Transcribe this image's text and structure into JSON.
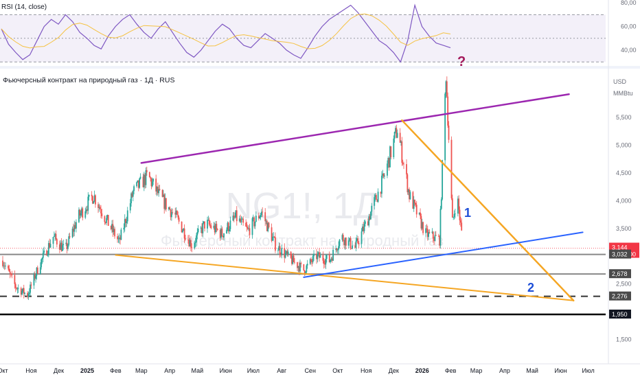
{
  "header": {
    "title": "Фьючерсный контракт на природный газ · 1Д · RUS",
    "rsi_title": "RSI (14, close)"
  },
  "watermark": {
    "symbol": "NG1!, 1Д",
    "name": "Фьючерсный контракт на природный газ"
  },
  "right_axis": {
    "currency": "USD",
    "unit": "MMBtu",
    "ticks": [
      "5,500",
      "5,000",
      "4,500",
      "4,000",
      "3,500",
      "2,500",
      "1,500"
    ],
    "rsi_ticks": [
      "80,00",
      "60,00",
      "40,00"
    ]
  },
  "price_badges": [
    {
      "value": "3,144",
      "sub": "16:38:00",
      "color": "#f23645"
    },
    {
      "value": "3,032",
      "color": "#4a4a4a"
    },
    {
      "value": "2,678",
      "color": "#4a4a4a"
    },
    {
      "value": "2,276",
      "color": "#4a4a4a"
    },
    {
      "value": "1,950",
      "color": "#131722"
    }
  ],
  "x_axis": [
    "Окт",
    "Ноя",
    "Дек",
    "2025",
    "Фев",
    "Мар",
    "Апр",
    "Май",
    "Июн",
    "Июл",
    "Авг",
    "Сен",
    "Окт",
    "Ноя",
    "Дек",
    "2026",
    "Фев",
    "Мар",
    "Апр",
    "Май",
    "Июн",
    "Июл"
  ],
  "annotations": {
    "label_1": "1",
    "label_2": "2",
    "question": "?"
  },
  "colors": {
    "up": "#26a69a",
    "down": "#ef5350",
    "channel_top": "#9c27b0",
    "triangle": "#f5a623",
    "support_blue": "#2962ff",
    "rsi": "#7e57c2",
    "rsi_ma": "#f5c242"
  },
  "chart_data": {
    "type": "candlestick",
    "title": "Фьючерсный контракт на природный газ · 1Д · RUS",
    "symbol": "NG1!",
    "timeframe": "1Д",
    "currency": "USD / MMBtu",
    "ylim": [
      1.4,
      6.4
    ],
    "xlim": [
      "2024-09-28",
      "2026-07-20"
    ],
    "last_price": 3.144,
    "horizontal_levels": [
      3.032,
      2.678,
      2.276,
      1.95
    ],
    "close_path": [
      [
        "2024-10-01",
        2.92
      ],
      [
        "2024-10-15",
        2.45
      ],
      [
        "2024-10-28",
        2.3
      ],
      [
        "2024-11-10",
        2.85
      ],
      [
        "2024-11-25",
        3.35
      ],
      [
        "2024-12-08",
        3.1
      ],
      [
        "2024-12-22",
        3.7
      ],
      [
        "2025-01-08",
        4.1
      ],
      [
        "2025-01-22",
        3.65
      ],
      [
        "2025-02-05",
        3.25
      ],
      [
        "2025-02-20",
        4.15
      ],
      [
        "2025-03-08",
        4.45
      ],
      [
        "2025-03-22",
        4.05
      ],
      [
        "2025-04-08",
        3.7
      ],
      [
        "2025-04-25",
        3.2
      ],
      [
        "2025-05-10",
        3.6
      ],
      [
        "2025-05-28",
        3.4
      ],
      [
        "2025-06-12",
        3.7
      ],
      [
        "2025-06-25",
        3.45
      ],
      [
        "2025-07-10",
        3.8
      ],
      [
        "2025-07-25",
        3.2
      ],
      [
        "2025-08-10",
        2.95
      ],
      [
        "2025-08-25",
        2.75
      ],
      [
        "2025-09-08",
        3.0
      ],
      [
        "2025-09-22",
        2.92
      ],
      [
        "2025-10-05",
        3.35
      ],
      [
        "2025-10-20",
        3.15
      ],
      [
        "2025-11-05",
        3.75
      ],
      [
        "2025-11-20",
        4.4
      ],
      [
        "2025-12-05",
        5.3
      ],
      [
        "2025-12-18",
        4.1
      ],
      [
        "2026-01-05",
        3.4
      ],
      [
        "2026-01-20",
        3.3
      ],
      [
        "2026-01-27",
        6.3
      ],
      [
        "2026-02-03",
        3.6
      ],
      [
        "2026-02-08",
        4.1
      ],
      [
        "2026-02-15",
        3.144
      ]
    ],
    "trendlines": [
      {
        "name": "channel_top",
        "points": [
          [
            "2025-03-01",
            4.68
          ],
          [
            "2026-06-10",
            5.92
          ]
        ]
      },
      {
        "name": "triangle_upper",
        "points": [
          [
            "2025-12-10",
            5.45
          ],
          [
            "2026-06-15",
            2.2
          ]
        ]
      },
      {
        "name": "triangle_lower",
        "points": [
          [
            "2025-02-01",
            3.02
          ],
          [
            "2026-06-15",
            2.2
          ]
        ]
      },
      {
        "name": "blue_support",
        "points": [
          [
            "2025-08-25",
            2.62
          ],
          [
            "2026-06-25",
            3.43
          ]
        ]
      }
    ],
    "rsi": {
      "length": 14,
      "ylim": [
        20,
        90
      ],
      "bands": [
        30,
        50,
        70
      ],
      "values": [
        58,
        45,
        38,
        32,
        36,
        48,
        60,
        66,
        62,
        70,
        64,
        55,
        50,
        44,
        41,
        52,
        60,
        66,
        70,
        62,
        55,
        50,
        58,
        64,
        55,
        46,
        38,
        34,
        40,
        48,
        56,
        62,
        58,
        50,
        44,
        42,
        48,
        54,
        50,
        46,
        40,
        36,
        33,
        42,
        52,
        60,
        66,
        70,
        74,
        78,
        72,
        64,
        56,
        48,
        44,
        38,
        30,
        48,
        78,
        60,
        52,
        46,
        44,
        42
      ]
    }
  }
}
